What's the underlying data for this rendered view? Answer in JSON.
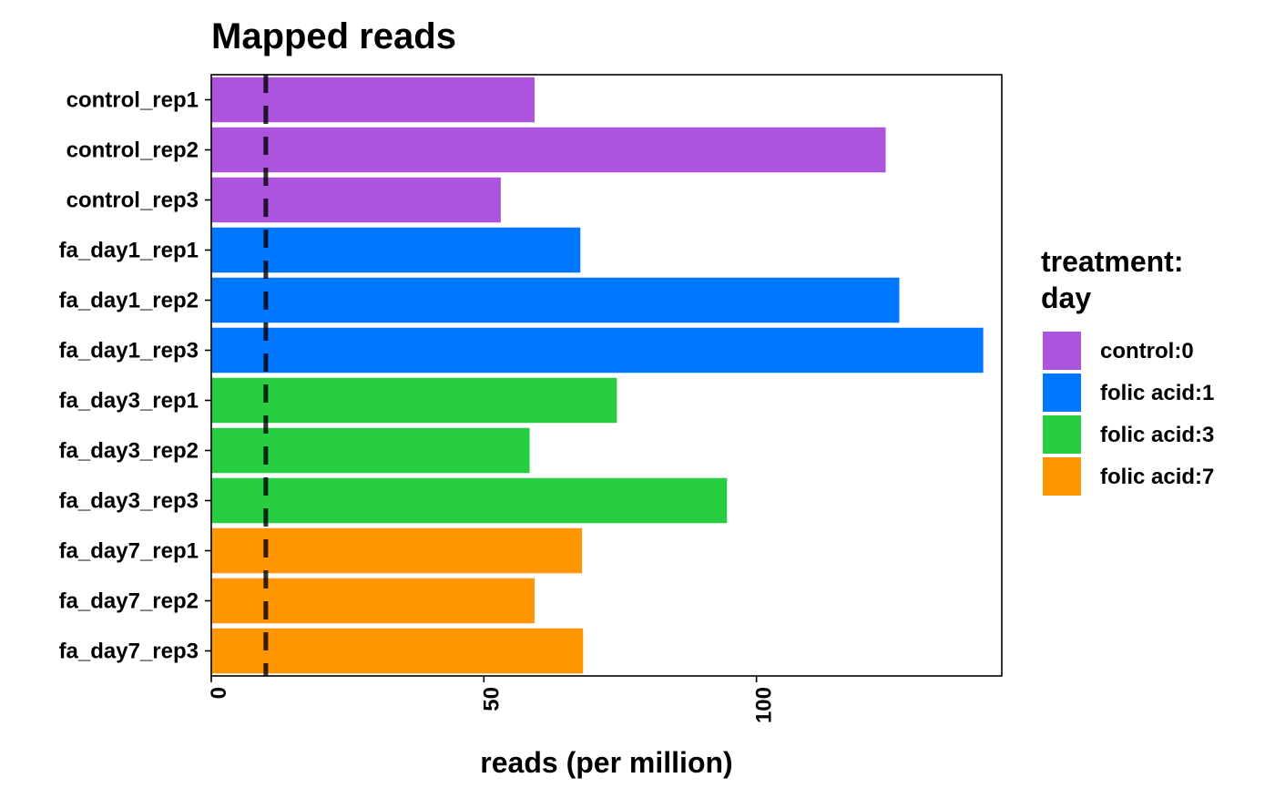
{
  "chart_data": {
    "type": "bar",
    "orientation": "horizontal",
    "title": "Mapped reads",
    "xlabel": "reads (per million)",
    "ylabel": "",
    "xlim": [
      0,
      145
    ],
    "xticks": [
      0,
      50,
      100
    ],
    "grid": false,
    "legend_position": "right",
    "legend_title": [
      "treatment:",
      "day"
    ],
    "legend": [
      {
        "label": "control:0",
        "color": "#AD54DF"
      },
      {
        "label": "folic acid:1",
        "color": "#0077FF"
      },
      {
        "label": "folic acid:3",
        "color": "#27CE41"
      },
      {
        "label": "folic acid:7",
        "color": "#FF9500"
      }
    ],
    "reference_line": {
      "x": 10,
      "style": "dashed",
      "color": "#000000"
    },
    "categories": [
      "control_rep1",
      "control_rep2",
      "control_rep3",
      "fa_day1_rep1",
      "fa_day1_rep2",
      "fa_day1_rep3",
      "fa_day3_rep1",
      "fa_day3_rep2",
      "fa_day3_rep3",
      "fa_day7_rep1",
      "fa_day7_rep2",
      "fa_day7_rep3"
    ],
    "values": [
      59.3,
      123.7,
      53.1,
      67.7,
      126.2,
      141.6,
      74.4,
      58.4,
      94.6,
      68.0,
      59.3,
      68.2
    ],
    "groups": [
      0,
      0,
      0,
      1,
      1,
      1,
      2,
      2,
      2,
      3,
      3,
      3
    ]
  }
}
